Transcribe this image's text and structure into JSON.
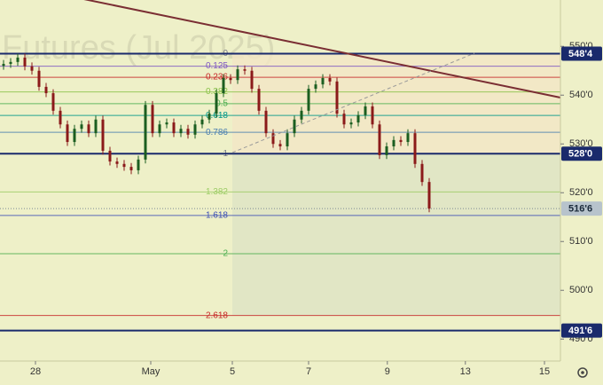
{
  "chart_data": {
    "type": "candlestick",
    "watermark": "Futures (Jul 2025)",
    "up_color": "#1b5e20",
    "down_color": "#8b1a1a",
    "series": {
      "open": [
        546.0,
        546.4,
        546.8,
        547.7,
        545.9,
        545.0,
        541.7,
        540.4,
        536.8,
        534.0,
        530.4,
        533.1,
        534.0,
        532.2,
        535.0,
        528.6,
        526.4,
        525.9,
        525.3,
        524.6,
        526.8,
        538.0,
        532.2,
        534.0,
        534.4,
        532.2,
        533.1,
        531.9,
        534.0,
        535.0,
        536.2,
        540.4,
        543.5,
        543.1,
        545.3,
        545.0,
        541.3,
        536.8,
        532.2,
        530.0,
        529.5,
        532.2,
        535.0,
        536.8,
        541.3,
        542.2,
        543.5,
        542.8,
        536.2,
        534.0,
        534.4,
        535.9,
        537.7,
        534.0,
        527.7,
        529.5,
        530.8,
        530.4,
        532.2,
        525.9,
        522.2
      ],
      "high": [
        547.2,
        547.6,
        548.5,
        548.5,
        546.7,
        545.8,
        542.5,
        541.2,
        537.6,
        534.8,
        533.9,
        534.8,
        534.8,
        535.8,
        535.8,
        529.4,
        527.2,
        526.7,
        526.1,
        527.6,
        538.8,
        538.8,
        534.8,
        535.2,
        535.2,
        533.9,
        533.9,
        534.8,
        535.8,
        537.0,
        541.2,
        544.3,
        544.3,
        546.1,
        546.1,
        545.8,
        542.1,
        537.6,
        533.0,
        530.8,
        533.0,
        535.8,
        537.6,
        542.1,
        543.0,
        544.3,
        544.3,
        543.6,
        537.0,
        535.2,
        536.7,
        538.5,
        538.5,
        534.8,
        530.3,
        531.6,
        531.6,
        533.0,
        533.0,
        526.7,
        523.0
      ],
      "low": [
        545.2,
        545.6,
        546.0,
        545.1,
        544.2,
        540.9,
        539.6,
        536.0,
        533.2,
        529.6,
        529.6,
        532.3,
        531.4,
        531.4,
        527.8,
        525.6,
        525.1,
        524.5,
        523.8,
        523.8,
        526.0,
        531.4,
        531.4,
        533.2,
        531.4,
        531.4,
        531.1,
        531.1,
        533.2,
        534.2,
        535.4,
        539.6,
        542.3,
        542.3,
        544.2,
        540.5,
        536.0,
        531.4,
        529.2,
        528.7,
        528.7,
        531.4,
        534.2,
        536.0,
        540.5,
        541.4,
        542.0,
        535.4,
        533.2,
        533.2,
        533.6,
        535.1,
        533.2,
        526.9,
        526.9,
        528.7,
        529.6,
        529.6,
        525.1,
        521.4,
        516.0
      ],
      "close": [
        546.4,
        546.8,
        547.7,
        545.9,
        545.0,
        541.7,
        540.4,
        536.8,
        534.0,
        530.4,
        533.1,
        534.0,
        532.2,
        535.0,
        528.6,
        526.4,
        525.9,
        525.3,
        524.6,
        526.8,
        538.0,
        532.2,
        534.0,
        534.4,
        532.2,
        533.1,
        531.9,
        534.0,
        535.0,
        536.2,
        540.4,
        543.5,
        543.1,
        545.3,
        545.0,
        541.3,
        536.8,
        532.2,
        530.0,
        529.5,
        532.2,
        535.0,
        536.8,
        541.3,
        542.2,
        543.5,
        542.8,
        536.2,
        534.0,
        534.4,
        535.9,
        537.7,
        534.0,
        527.7,
        529.5,
        530.8,
        530.4,
        532.2,
        525.9,
        522.2,
        516.75
      ]
    },
    "xlim": [
      -0.5,
      78.5
    ],
    "xticks": [
      {
        "value": 4.5,
        "label": "28"
      },
      {
        "value": 20.75,
        "label": "May"
      },
      {
        "value": 32.25,
        "label": "5"
      },
      {
        "value": 43,
        "label": "7"
      },
      {
        "value": 54.1,
        "label": "9"
      },
      {
        "value": 65.1,
        "label": "13"
      },
      {
        "value": 76.25,
        "label": "15"
      }
    ],
    "ylim": [
      485.5,
      559.5
    ],
    "yticks": [
      {
        "value": 490,
        "label": "490'0"
      },
      {
        "value": 500,
        "label": "500'0"
      },
      {
        "value": 510,
        "label": "510'0"
      },
      {
        "value": 520,
        "label": "520'0"
      },
      {
        "value": 530,
        "label": "530'0"
      },
      {
        "value": 540,
        "label": "540'0"
      },
      {
        "value": 550,
        "label": "550'0"
      }
    ],
    "levels": [
      {
        "value": 548.5,
        "label": "548'4"
      },
      {
        "value": 528,
        "label": "528'0"
      },
      {
        "value": 491.75,
        "label": "491'6"
      }
    ],
    "level_color": "#1a2a6c",
    "last_price": {
      "value": 516.75,
      "label": "516'6"
    },
    "last_price_color": "#b7c3cc",
    "fib": {
      "high": 548.5,
      "low": 528,
      "levels": [
        0,
        0.125,
        0.236,
        0.382,
        0.5,
        0.618,
        0.786,
        1,
        1.382,
        1.618,
        2,
        2.618
      ],
      "colors": [
        "#787b86",
        "#7e57c2",
        "#c62828",
        "#8bc34a",
        "#4caf50",
        "#009688",
        "#4a7fb0",
        "#787b86",
        "#9ccc65",
        "#3f51b5",
        "#4caf50",
        "#c62828"
      ]
    }
  }
}
